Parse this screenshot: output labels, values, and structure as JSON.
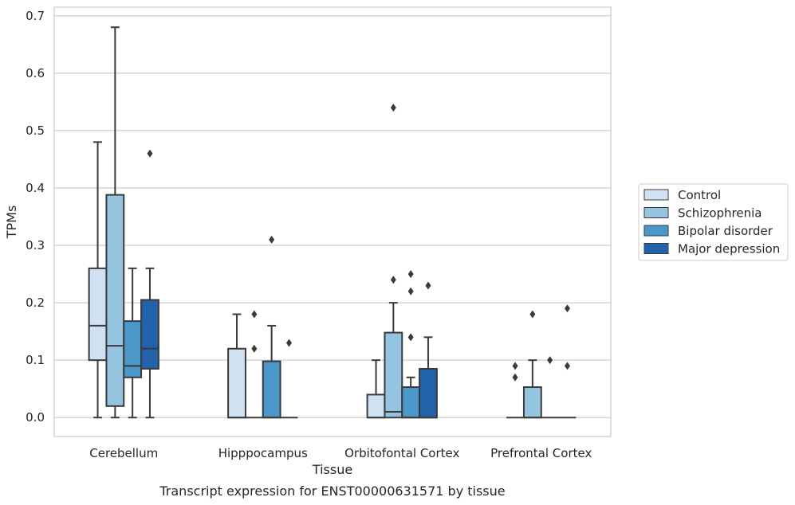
{
  "chart_data": {
    "type": "box",
    "xlabel": "Tissue",
    "ylabel": "TPMs",
    "caption": "Transcript expression for ENST00000631571 by tissue",
    "ylim": [
      -0.033,
      0.715
    ],
    "yticks": [
      0.0,
      0.1,
      0.2,
      0.3,
      0.4,
      0.5,
      0.6,
      0.7
    ],
    "ytick_labels": [
      "0.0",
      "0.1",
      "0.2",
      "0.3",
      "0.4",
      "0.5",
      "0.6",
      "0.7"
    ],
    "grid": true,
    "legend_position": "right",
    "categories": [
      "Cerebellum",
      "Hipppocampus",
      "Orbitofontal Cortex",
      "Prefrontal Cortex"
    ],
    "series": [
      {
        "name": "Control",
        "color": "#d0e1f2",
        "boxes": [
          {
            "whislo": 0.0,
            "q1": 0.1,
            "med": 0.16,
            "q3": 0.26,
            "whishi": 0.48,
            "fliers": []
          },
          {
            "whislo": 0.0,
            "q1": 0.0,
            "med": 0.0,
            "q3": 0.12,
            "whishi": 0.18,
            "fliers": []
          },
          {
            "whislo": 0.0,
            "q1": 0.0,
            "med": 0.0,
            "q3": 0.04,
            "whishi": 0.1,
            "fliers": []
          },
          {
            "whislo": 0.0,
            "q1": 0.0,
            "med": 0.0,
            "q3": 0.0,
            "whishi": 0.0,
            "fliers": [
              0.07,
              0.09
            ]
          }
        ]
      },
      {
        "name": "Schizophrenia",
        "color": "#94c4df",
        "boxes": [
          {
            "whislo": 0.0,
            "q1": 0.02,
            "med": 0.125,
            "q3": 0.388,
            "whishi": 0.68,
            "fliers": []
          },
          {
            "whislo": 0.0,
            "q1": 0.0,
            "med": 0.0,
            "q3": 0.0,
            "whishi": 0.0,
            "fliers": [
              0.12,
              0.18
            ]
          },
          {
            "whislo": 0.0,
            "q1": 0.0,
            "med": 0.01,
            "q3": 0.148,
            "whishi": 0.2,
            "fliers": [
              0.24,
              0.54
            ]
          },
          {
            "whislo": 0.0,
            "q1": 0.0,
            "med": 0.0,
            "q3": 0.053,
            "whishi": 0.1,
            "fliers": [
              0.18
            ]
          }
        ]
      },
      {
        "name": "Bipolar disorder",
        "color": "#4a98c9",
        "boxes": [
          {
            "whislo": 0.0,
            "q1": 0.07,
            "med": 0.09,
            "q3": 0.168,
            "whishi": 0.26,
            "fliers": []
          },
          {
            "whislo": 0.0,
            "q1": 0.0,
            "med": 0.0,
            "q3": 0.098,
            "whishi": 0.16,
            "fliers": [
              0.31
            ]
          },
          {
            "whislo": 0.0,
            "q1": 0.0,
            "med": 0.0,
            "q3": 0.053,
            "whishi": 0.07,
            "fliers": [
              0.14,
              0.22,
              0.25
            ]
          },
          {
            "whislo": 0.0,
            "q1": 0.0,
            "med": 0.0,
            "q3": 0.0,
            "whishi": 0.0,
            "fliers": [
              0.1
            ]
          }
        ]
      },
      {
        "name": "Major depression",
        "color": "#2163aa",
        "boxes": [
          {
            "whislo": 0.0,
            "q1": 0.085,
            "med": 0.12,
            "q3": 0.205,
            "whishi": 0.26,
            "fliers": [
              0.46
            ]
          },
          {
            "whislo": 0.0,
            "q1": 0.0,
            "med": 0.0,
            "q3": 0.0,
            "whishi": 0.0,
            "fliers": [
              0.13
            ]
          },
          {
            "whislo": 0.0,
            "q1": 0.0,
            "med": 0.0,
            "q3": 0.085,
            "whishi": 0.14,
            "fliers": [
              0.23
            ]
          },
          {
            "whislo": 0.0,
            "q1": 0.0,
            "med": 0.0,
            "q3": 0.0,
            "whishi": 0.0,
            "fliers": [
              0.09,
              0.19
            ]
          }
        ]
      }
    ]
  }
}
